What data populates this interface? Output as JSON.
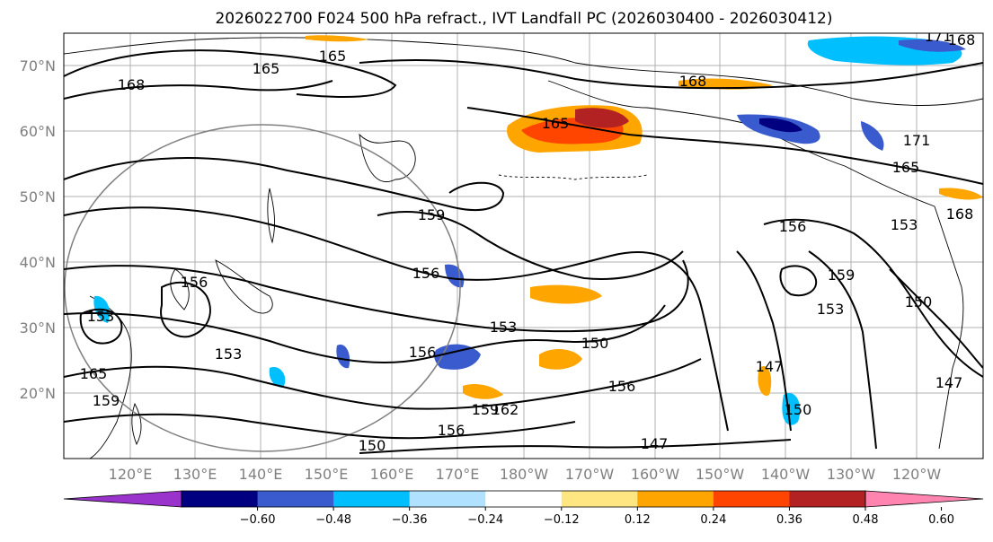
{
  "title": "2026022700 F024 500 hPa refract., IVT Landfall PC (2026030400 - 2026030412)",
  "map": {
    "lat_labels": [
      "70°N",
      "60°N",
      "50°N",
      "40°N",
      "30°N",
      "20°N"
    ],
    "lon_labels": [
      "120°E",
      "130°E",
      "140°E",
      "150°E",
      "160°E",
      "170°E",
      "180°W",
      "170°W",
      "160°W",
      "150°W",
      "140°W",
      "130°W",
      "120°W"
    ],
    "contour_labels": [
      "165",
      "165",
      "168",
      "168",
      "171",
      "165",
      "168",
      "165",
      "159",
      "156",
      "156",
      "153",
      "156",
      "153",
      "153",
      "150",
      "156",
      "159",
      "156",
      "162",
      "159",
      "150",
      "147",
      "147",
      "150",
      "147",
      "153",
      "156",
      "159",
      "153",
      "150",
      "171",
      "168",
      "165"
    ]
  },
  "colorbar": {
    "colors": [
      "#9933cc",
      "#000080",
      "#3a5bcd",
      "#00bfff",
      "#b0e2ff",
      "#ffffff",
      "#ffe680",
      "#ffa500",
      "#ff4500",
      "#b22222",
      "#ff85b0"
    ],
    "tick_labels": [
      "−0.60",
      "−0.48",
      "−0.36",
      "−0.24",
      "−0.12",
      "0.12",
      "0.24",
      "0.36",
      "0.48",
      "0.60"
    ]
  }
}
